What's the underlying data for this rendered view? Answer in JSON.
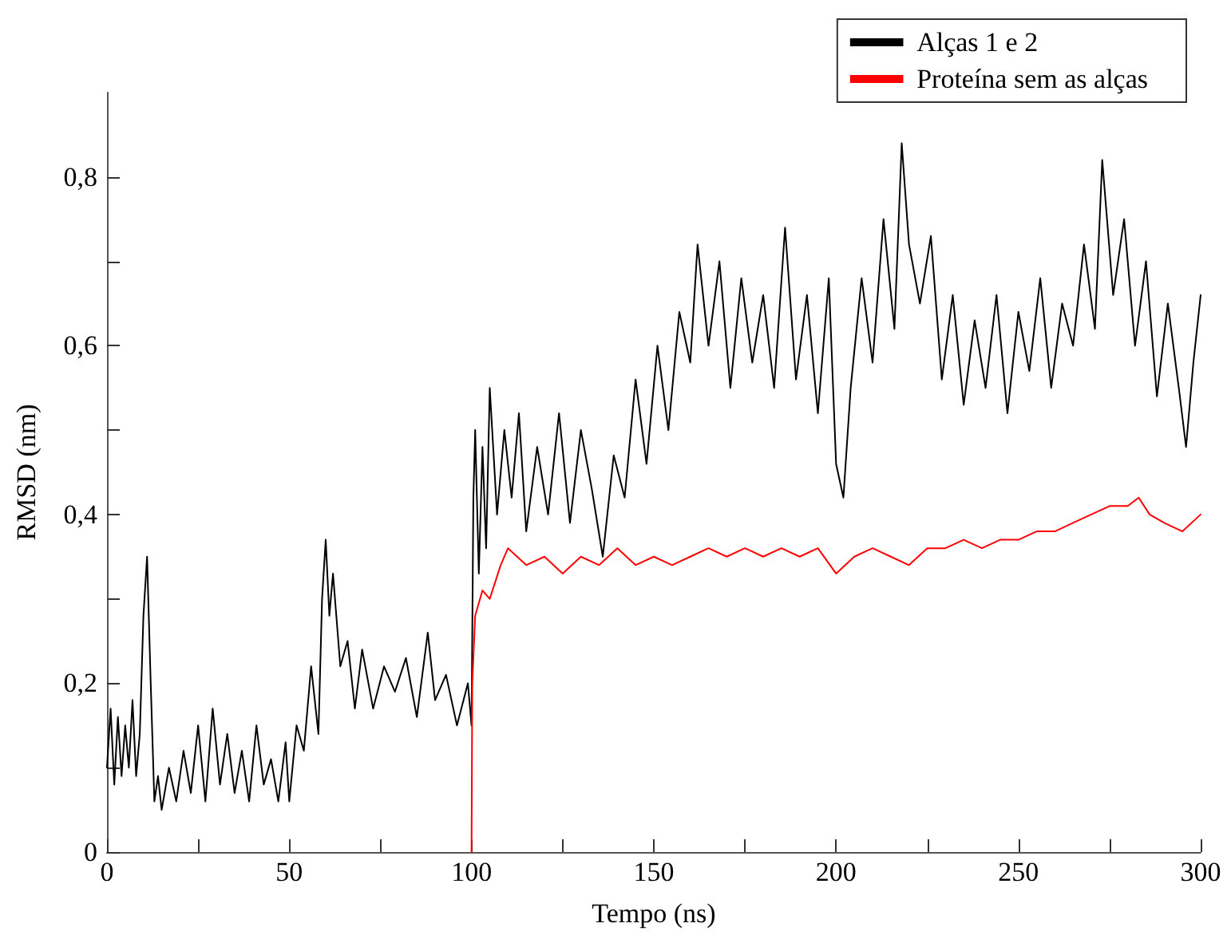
{
  "chart_data": {
    "type": "line",
    "xlabel": "Tempo (ns)",
    "ylabel": "RMSD (nm)",
    "xlim": [
      0,
      300
    ],
    "ylim": [
      0,
      0.9
    ],
    "xticks": [
      0,
      {
        "value": 25,
        "label": null
      },
      50,
      {
        "value": 75,
        "label": null
      },
      100,
      {
        "value": 125,
        "label": null
      },
      150,
      {
        "value": 175,
        "label": null
      },
      200,
      {
        "value": 225,
        "label": null
      },
      250,
      {
        "value": 275,
        "label": null
      },
      300
    ],
    "yticks": [
      0,
      {
        "value": 0.1,
        "label": null
      },
      {
        "value": 0.2,
        "label": "0,2"
      },
      {
        "value": 0.3,
        "label": null
      },
      {
        "value": 0.4,
        "label": "0,4"
      },
      {
        "value": 0.5,
        "label": null
      },
      {
        "value": 0.6,
        "label": "0,6"
      },
      {
        "value": 0.7,
        "label": null
      },
      {
        "value": 0.8,
        "label": "0,8"
      }
    ],
    "grid": false,
    "legend": "top right",
    "marker": "none",
    "line_style": "solid",
    "series": [
      {
        "name": "Alças 1 e 2",
        "color": "#000000",
        "x": [
          0,
          1,
          2,
          3,
          4,
          5,
          6,
          7,
          8,
          9,
          10,
          11,
          12,
          13,
          14,
          15,
          17,
          19,
          21,
          23,
          25,
          27,
          29,
          31,
          33,
          35,
          37,
          39,
          41,
          43,
          45,
          47,
          49,
          50,
          52,
          54,
          56,
          58,
          59,
          60,
          61,
          62,
          64,
          66,
          68,
          70,
          73,
          76,
          79,
          82,
          85,
          88,
          90,
          93,
          96,
          99,
          100,
          100.5,
          101,
          102,
          103,
          104,
          105,
          107,
          109,
          111,
          113,
          115,
          118,
          121,
          124,
          127,
          130,
          133,
          136,
          139,
          142,
          145,
          148,
          151,
          154,
          157,
          160,
          162,
          165,
          168,
          171,
          174,
          177,
          180,
          183,
          186,
          189,
          192,
          195,
          198,
          200,
          202,
          204,
          207,
          210,
          213,
          216,
          218,
          220,
          223,
          226,
          229,
          232,
          235,
          238,
          241,
          244,
          247,
          250,
          253,
          256,
          259,
          262,
          265,
          268,
          271,
          273,
          276,
          279,
          282,
          285,
          288,
          291,
          294,
          296,
          298,
          300
        ],
        "values": [
          0.1,
          0.17,
          0.08,
          0.16,
          0.09,
          0.15,
          0.1,
          0.18,
          0.09,
          0.14,
          0.28,
          0.35,
          0.2,
          0.06,
          0.09,
          0.05,
          0.1,
          0.06,
          0.12,
          0.07,
          0.15,
          0.06,
          0.17,
          0.08,
          0.14,
          0.07,
          0.12,
          0.06,
          0.15,
          0.08,
          0.11,
          0.06,
          0.13,
          0.06,
          0.15,
          0.12,
          0.22,
          0.14,
          0.3,
          0.37,
          0.28,
          0.33,
          0.22,
          0.25,
          0.17,
          0.24,
          0.17,
          0.22,
          0.19,
          0.23,
          0.16,
          0.26,
          0.18,
          0.21,
          0.15,
          0.2,
          0.15,
          0.42,
          0.5,
          0.33,
          0.48,
          0.36,
          0.55,
          0.4,
          0.5,
          0.42,
          0.52,
          0.38,
          0.48,
          0.4,
          0.52,
          0.39,
          0.5,
          0.43,
          0.35,
          0.47,
          0.42,
          0.56,
          0.46,
          0.6,
          0.5,
          0.64,
          0.58,
          0.72,
          0.6,
          0.7,
          0.55,
          0.68,
          0.58,
          0.66,
          0.55,
          0.74,
          0.56,
          0.66,
          0.52,
          0.68,
          0.46,
          0.42,
          0.55,
          0.68,
          0.58,
          0.75,
          0.62,
          0.84,
          0.72,
          0.65,
          0.73,
          0.56,
          0.66,
          0.53,
          0.63,
          0.55,
          0.66,
          0.52,
          0.64,
          0.57,
          0.68,
          0.55,
          0.65,
          0.6,
          0.72,
          0.62,
          0.82,
          0.66,
          0.75,
          0.6,
          0.7,
          0.54,
          0.65,
          0.55,
          0.48,
          0.58,
          0.66
        ]
      },
      {
        "name": "Proteína sem as alças",
        "color": "#ff0000",
        "x": [
          100,
          100.2,
          101,
          103,
          105,
          108,
          110,
          115,
          120,
          125,
          130,
          135,
          140,
          145,
          150,
          155,
          160,
          165,
          170,
          175,
          180,
          185,
          190,
          195,
          200,
          205,
          210,
          215,
          220,
          225,
          230,
          235,
          240,
          245,
          250,
          255,
          260,
          265,
          270,
          275,
          280,
          283,
          286,
          290,
          295,
          300
        ],
        "values": [
          0,
          0.2,
          0.28,
          0.31,
          0.3,
          0.34,
          0.36,
          0.34,
          0.35,
          0.33,
          0.35,
          0.34,
          0.36,
          0.34,
          0.35,
          0.34,
          0.35,
          0.36,
          0.35,
          0.36,
          0.35,
          0.36,
          0.35,
          0.36,
          0.33,
          0.35,
          0.36,
          0.35,
          0.34,
          0.36,
          0.36,
          0.37,
          0.36,
          0.37,
          0.37,
          0.38,
          0.38,
          0.39,
          0.4,
          0.41,
          0.41,
          0.42,
          0.4,
          0.39,
          0.38,
          0.4
        ]
      }
    ]
  }
}
